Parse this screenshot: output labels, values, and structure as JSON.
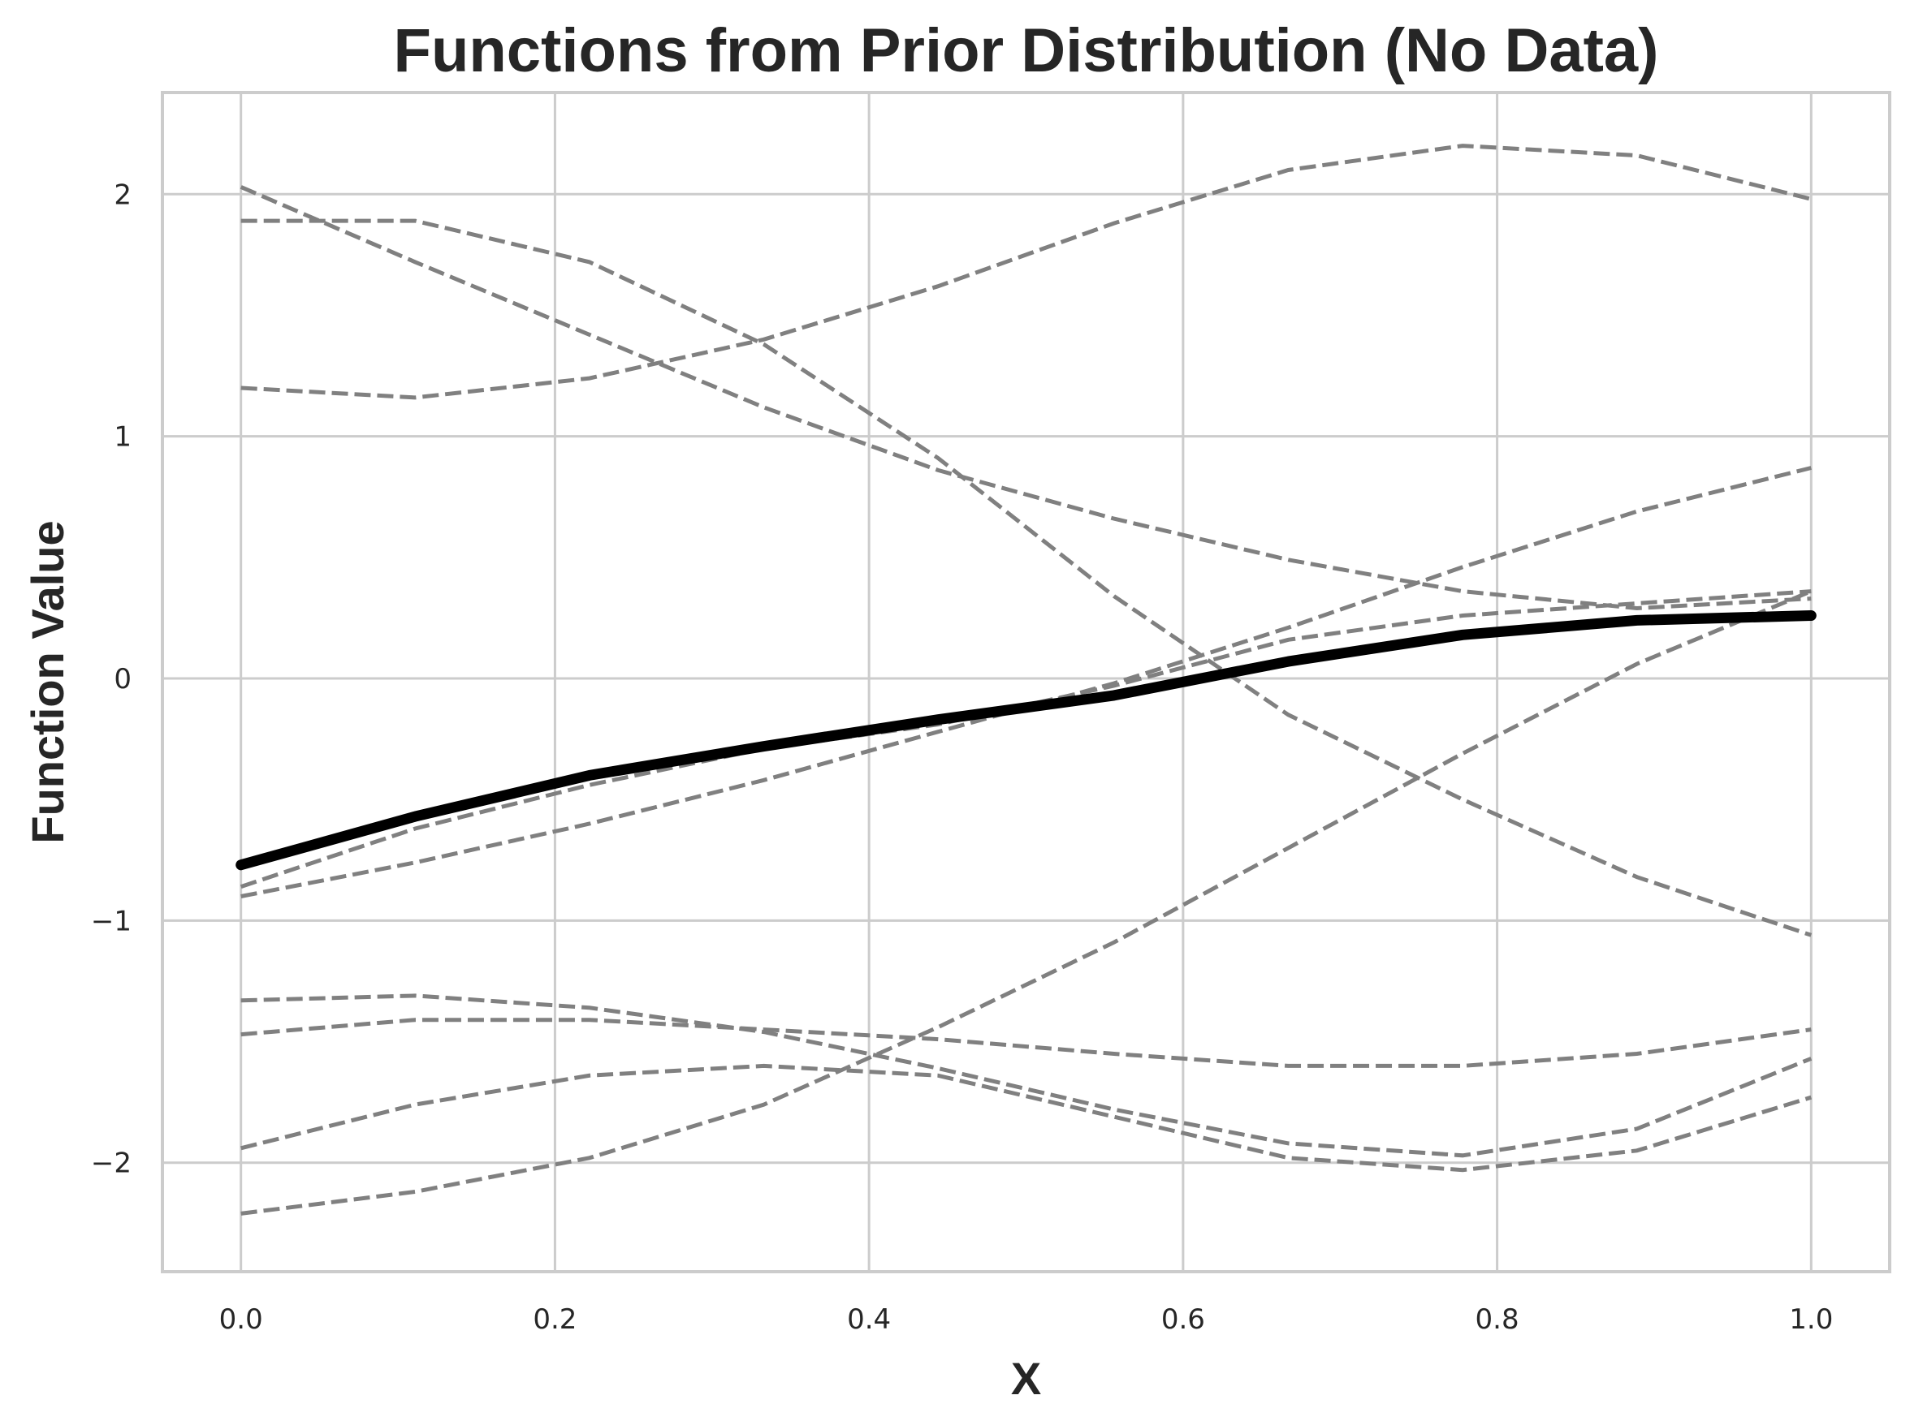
{
  "chart_data": {
    "type": "line",
    "title": "Functions from Prior Distribution (No Data)",
    "xlabel": "X",
    "ylabel": "Function Value",
    "xlim": [
      -0.05,
      1.05
    ],
    "ylim": [
      -2.45,
      2.42
    ],
    "xticks": [
      0.0,
      0.2,
      0.4,
      0.6,
      0.8,
      1.0
    ],
    "xtick_labels": [
      "0.0",
      "0.2",
      "0.4",
      "0.6",
      "0.8",
      "1.0"
    ],
    "yticks": [
      -2,
      -1,
      0,
      1,
      2
    ],
    "ytick_labels": [
      "−2",
      "−1",
      "0",
      "1",
      "2"
    ],
    "grid": true,
    "x": [
      0.0,
      0.111,
      0.222,
      0.333,
      0.444,
      0.556,
      0.667,
      0.778,
      0.889,
      1.0
    ],
    "series": [
      {
        "style": "dashed",
        "color": "#808080",
        "values": [
          1.2,
          1.16,
          1.24,
          1.4,
          1.62,
          1.88,
          2.1,
          2.2,
          2.16,
          1.98
        ]
      },
      {
        "style": "dashed",
        "color": "#808080",
        "values": [
          2.03,
          1.72,
          1.42,
          1.12,
          0.86,
          0.66,
          0.49,
          0.36,
          0.29,
          0.33
        ]
      },
      {
        "style": "dashed",
        "color": "#808080",
        "values": [
          1.89,
          1.89,
          1.72,
          1.38,
          0.91,
          0.34,
          -0.15,
          -0.5,
          -0.82,
          -1.06
        ]
      },
      {
        "style": "dashed",
        "color": "#808080",
        "values": [
          -0.86,
          -0.62,
          -0.44,
          -0.29,
          -0.19,
          -0.03,
          0.16,
          0.26,
          0.31,
          0.36
        ]
      },
      {
        "style": "dashed",
        "color": "#808080",
        "values": [
          -0.9,
          -0.76,
          -0.6,
          -0.42,
          -0.22,
          -0.02,
          0.21,
          0.46,
          0.69,
          0.87
        ]
      },
      {
        "style": "dashed",
        "color": "#808080",
        "values": [
          -1.33,
          -1.31,
          -1.36,
          -1.46,
          -1.61,
          -1.78,
          -1.92,
          -1.97,
          -1.86,
          -1.57
        ]
      },
      {
        "style": "dashed",
        "color": "#808080",
        "values": [
          -1.47,
          -1.41,
          -1.41,
          -1.45,
          -1.49,
          -1.55,
          -1.6,
          -1.6,
          -1.55,
          -1.45
        ]
      },
      {
        "style": "dashed",
        "color": "#808080",
        "values": [
          -1.94,
          -1.76,
          -1.64,
          -1.6,
          -1.64,
          -1.81,
          -1.98,
          -2.03,
          -1.95,
          -1.73
        ]
      },
      {
        "style": "dashed",
        "color": "#808080",
        "values": [
          -2.21,
          -2.12,
          -1.98,
          -1.76,
          -1.44,
          -1.09,
          -0.7,
          -0.31,
          0.06,
          0.36
        ]
      },
      {
        "style": "solid",
        "color": "#000000",
        "values": [
          -0.77,
          -0.57,
          -0.4,
          -0.28,
          -0.17,
          -0.07,
          0.07,
          0.18,
          0.24,
          0.26
        ]
      }
    ]
  }
}
